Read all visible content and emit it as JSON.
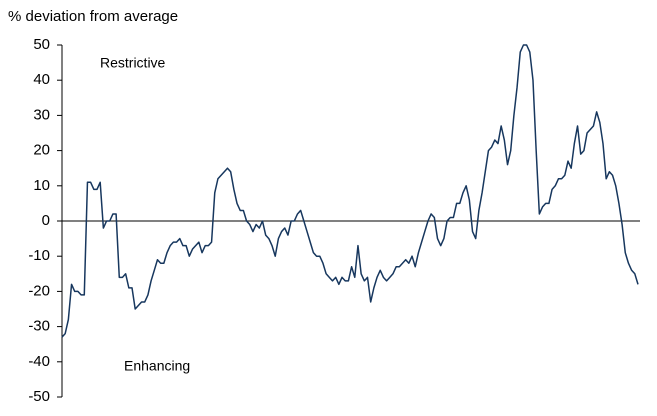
{
  "chart_data": {
    "type": "line",
    "y_label": "% deviation from average",
    "annotations": [
      "Restrictive",
      "Enhancing"
    ],
    "ylim": [
      -50,
      50
    ],
    "yticks": [
      -50,
      -40,
      -30,
      -20,
      -10,
      0,
      10,
      20,
      30,
      40,
      50
    ],
    "series": [
      {
        "color": "#17375e",
        "values": [
          -33,
          -32,
          -28,
          -18,
          -20,
          -20,
          -21,
          -21,
          11,
          11,
          9,
          9,
          11,
          -2,
          0,
          0,
          2,
          2,
          -16,
          -16,
          -15,
          -19,
          -19,
          -25,
          -24,
          -23,
          -23,
          -21,
          -17,
          -14,
          -11,
          -12,
          -12,
          -9,
          -7,
          -6,
          -6,
          -5,
          -7,
          -7,
          -10,
          -8,
          -7,
          -6,
          -9,
          -7,
          -7,
          -6,
          8,
          12,
          13,
          14,
          15,
          14,
          9,
          5,
          3,
          3,
          0,
          -1,
          -3,
          -1,
          -2,
          0,
          -4,
          -5,
          -7,
          -10,
          -5,
          -3,
          -2,
          -4,
          0,
          0,
          2,
          3,
          0,
          -3,
          -6,
          -9,
          -10,
          -10,
          -12,
          -15,
          -16,
          -17,
          -16,
          -18,
          -16,
          -17,
          -17,
          -13,
          -16,
          -7,
          -15,
          -17,
          -16,
          -23,
          -19,
          -16,
          -14,
          -16,
          -17,
          -16,
          -15,
          -13,
          -13,
          -12,
          -11,
          -12,
          -10,
          -13,
          -9,
          -6,
          -3,
          0,
          2,
          1,
          -5,
          -7,
          -5,
          0,
          1,
          1,
          5,
          5,
          8,
          10,
          6,
          -3,
          -5,
          3,
          8,
          14,
          20,
          21,
          23,
          22,
          27,
          23,
          16,
          20,
          30,
          38,
          48,
          50,
          50,
          48,
          40,
          20,
          2,
          4,
          5,
          5,
          9,
          10,
          12,
          12,
          13,
          17,
          15,
          22,
          27,
          19,
          20,
          25,
          26,
          27,
          31,
          28,
          22,
          12,
          14,
          13,
          10,
          5,
          -1,
          -9,
          -12,
          -14,
          -15,
          -18
        ]
      }
    ]
  }
}
